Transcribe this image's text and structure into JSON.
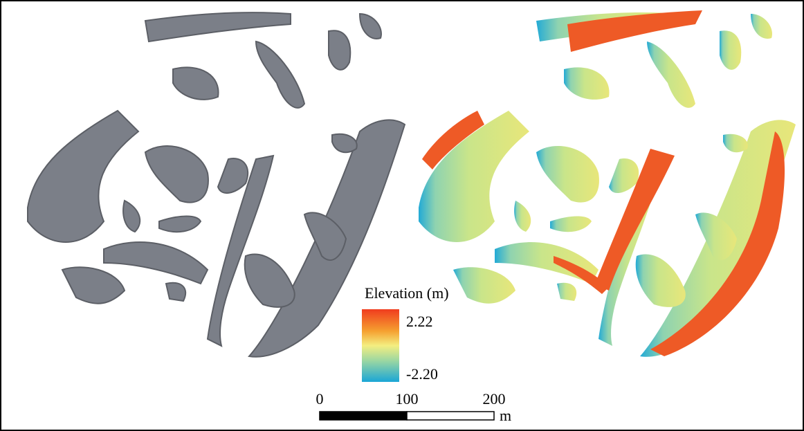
{
  "legend": {
    "title": "Elevation (m)",
    "max_label": "2.22",
    "min_label": "-2.20"
  },
  "scale_bar": {
    "ticks": [
      0,
      100,
      200
    ],
    "unit": "m"
  }
}
